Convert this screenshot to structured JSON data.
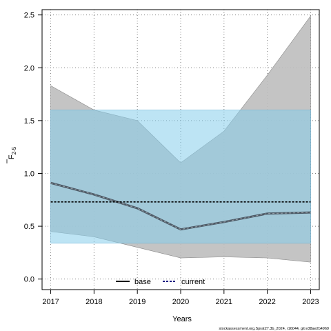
{
  "chart_data": {
    "type": "line",
    "xlabel": "Years",
    "ylabel": "F",
    "ylabel_subscript": "2-5",
    "x": [
      2017,
      2018,
      2019,
      2020,
      2021,
      2022,
      2023
    ],
    "xlim": [
      2016.8,
      2023.2
    ],
    "ylim": [
      -0.1,
      2.55
    ],
    "yticks": [
      "0.0",
      "0.5",
      "1.0",
      "1.5",
      "2.0",
      "2.5"
    ],
    "ytick_values": [
      0.0,
      0.5,
      1.0,
      1.5,
      2.0,
      2.5
    ],
    "grid": true,
    "legend_position": "bottom-center",
    "series": [
      {
        "name": "base",
        "values": [
          0.91,
          0.8,
          0.67,
          0.47,
          0.54,
          0.62,
          0.63
        ],
        "ci_lower": [
          0.45,
          0.4,
          0.3,
          0.2,
          0.21,
          0.2,
          0.16
        ],
        "ci_upper": [
          1.83,
          1.6,
          1.5,
          1.1,
          1.4,
          1.93,
          2.49
        ],
        "line_color": "#4d5a66",
        "band_color": "#bebebe"
      },
      {
        "name": "current",
        "values": [
          0.73,
          0.73,
          0.73,
          0.73,
          0.73,
          0.73,
          0.73
        ],
        "ci_lower": [
          0.34,
          0.34,
          0.34,
          0.34,
          0.34,
          0.34,
          0.34
        ],
        "ci_upper": [
          1.6,
          1.6,
          1.6,
          1.6,
          1.6,
          1.6,
          1.6
        ],
        "line_color": "#000080",
        "band_color": "#87ceeb"
      }
    ],
    "credit": "stockassessment.org,Sprat27.3b_2024, r16044, git:e38ae2b4969"
  }
}
